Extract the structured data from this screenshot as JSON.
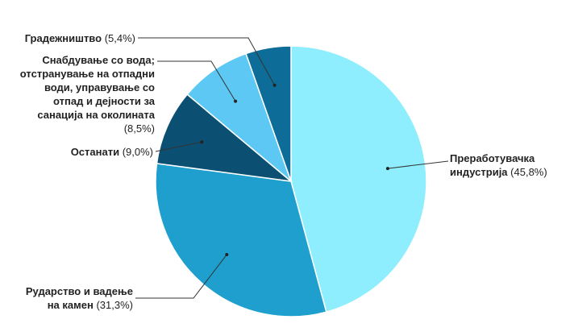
{
  "chart_data": {
    "type": "pie",
    "categories": [
      "Преработувачка индустрија",
      "Рударство и вадење на камен",
      "Останати",
      "Снабдување со вода; отстранување на отпадни води, управување со отпад и дејности за санација на околината",
      "Градежништво"
    ],
    "values": [
      45.8,
      31.3,
      9.0,
      8.5,
      5.4
    ],
    "value_labels": [
      "(45,8%)",
      "(31,3%)",
      "(9,0%)",
      "(8,5%)",
      "(5,4%)"
    ],
    "colors": [
      "#8eeefd",
      "#1f9fce",
      "#0b4f72",
      "#5ec8f5",
      "#0d6c98"
    ]
  }
}
